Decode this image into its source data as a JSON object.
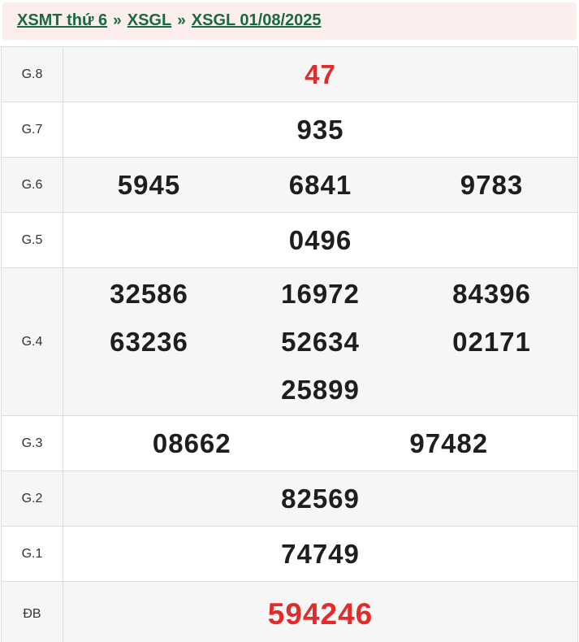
{
  "breadcrumb": {
    "separator": "»",
    "items": [
      {
        "label": "XSMT thứ 6"
      },
      {
        "label": "XSGL"
      },
      {
        "label": "XSGL 01/08/2025"
      }
    ]
  },
  "colors": {
    "link_green": "#176b3f",
    "header_bg": "#fceeec",
    "highlight_red": "#e22b2b",
    "number_black": "#1e1e1e",
    "row_alt_bg": "#f6f6f6",
    "border": "#dcdcdc"
  },
  "results_table": {
    "rows": [
      {
        "label": "G.8",
        "highlight": true,
        "lines": [
          [
            "47"
          ]
        ]
      },
      {
        "label": "G.7",
        "highlight": false,
        "lines": [
          [
            "935"
          ]
        ]
      },
      {
        "label": "G.6",
        "highlight": false,
        "lines": [
          [
            "5945",
            "6841",
            "9783"
          ]
        ]
      },
      {
        "label": "G.5",
        "highlight": false,
        "lines": [
          [
            "0496"
          ]
        ]
      },
      {
        "label": "G.4",
        "highlight": false,
        "lines": [
          [
            "32586",
            "16972",
            "84396"
          ],
          [
            "63236",
            "52634",
            "02171"
          ],
          [
            "",
            "25899",
            ""
          ]
        ]
      },
      {
        "label": "G.3",
        "highlight": false,
        "lines": [
          [
            "08662",
            "97482"
          ]
        ]
      },
      {
        "label": "G.2",
        "highlight": false,
        "lines": [
          [
            "82569"
          ]
        ]
      },
      {
        "label": "G.1",
        "highlight": false,
        "lines": [
          [
            "74749"
          ]
        ]
      },
      {
        "label": "ĐB",
        "highlight": true,
        "lines": [
          [
            "594246"
          ]
        ],
        "special": true
      }
    ]
  }
}
